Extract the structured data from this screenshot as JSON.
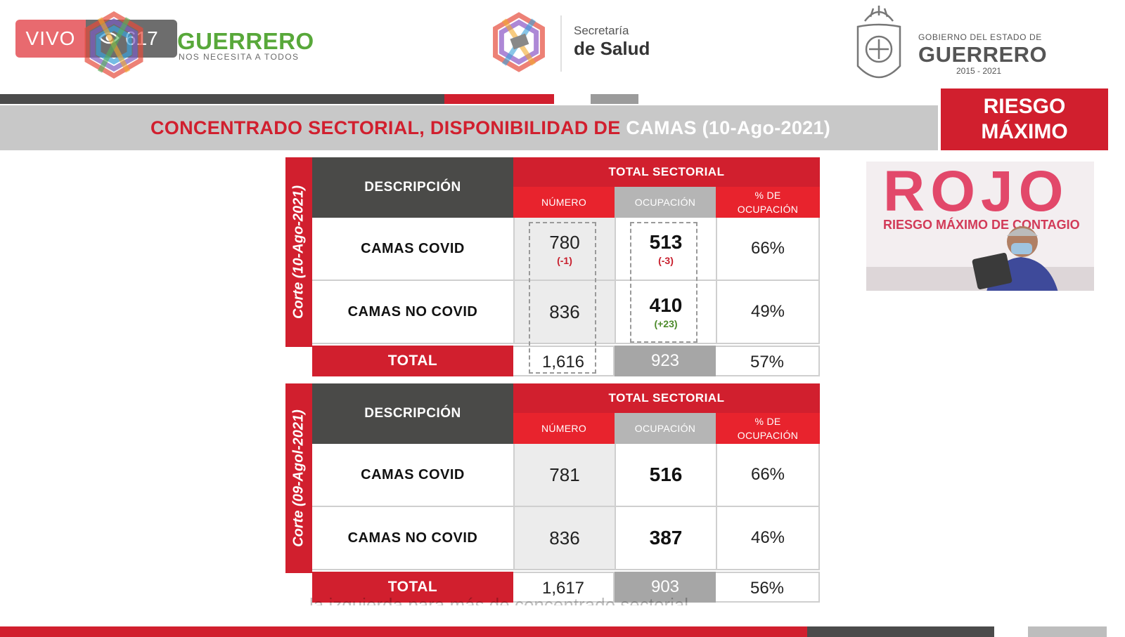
{
  "live": {
    "label": "VIVO",
    "viewers": "617"
  },
  "header": {
    "guerrero_logo": {
      "title": "GUERRERO",
      "tagline": "NOS NECESITA A TODOS"
    },
    "salud_logo": {
      "line1": "Secretaría",
      "line2": "de Salud"
    },
    "gobierno_logo": {
      "line1": "GOBIERNO DEL ESTADO DE",
      "line2": "GUERRERO",
      "years": "2015 - 2021"
    }
  },
  "title": {
    "red_part": "CONCENTRADO SECTORIAL, DISPONIBILIDAD DE",
    "white_part": "CAMAS (10-Ago-2021)"
  },
  "risk_badge": {
    "line1": "RIESGO",
    "line2": "MÁXIMO"
  },
  "tables": [
    {
      "side_label": "Corte (10-Ago-2021)",
      "desc_header": "DESCRIPCIÓN",
      "group_header": "TOTAL SECTORIAL",
      "sub_headers": [
        "NÚMERO",
        "OCUPACIÓN",
        "% DE OCUPACIÓN"
      ],
      "rows": [
        {
          "label": "CAMAS COVID",
          "numero": "780",
          "numero_delta": "(-1)",
          "ocupacion": "513",
          "ocupacion_delta": "(-3)",
          "pct": "66%"
        },
        {
          "label": "CAMAS NO COVID",
          "numero": "836",
          "numero_delta": "",
          "ocupacion": "410",
          "ocupacion_delta": "(+23)",
          "pct": "49%"
        }
      ],
      "total": {
        "label": "TOTAL",
        "numero": "1,616",
        "ocupacion": "923",
        "pct": "57%"
      }
    },
    {
      "side_label": "Corte (09-Agol-2021)",
      "desc_header": "DESCRIPCIÓN",
      "group_header": "TOTAL SECTORIAL",
      "sub_headers": [
        "NÚMERO",
        "OCUPACIÓN",
        "% DE OCUPACIÓN"
      ],
      "rows": [
        {
          "label": "CAMAS COVID",
          "numero": "781",
          "numero_delta": "",
          "ocupacion": "516",
          "ocupacion_delta": "",
          "pct": "66%"
        },
        {
          "label": "CAMAS NO COVID",
          "numero": "836",
          "numero_delta": "",
          "ocupacion": "387",
          "ocupacion_delta": "",
          "pct": "46%"
        }
      ],
      "total": {
        "label": "TOTAL",
        "numero": "1,617",
        "ocupacion": "903",
        "pct": "56%"
      }
    }
  ],
  "video": {
    "banner": "ROJO",
    "strip": "RIESGO MÁXIMO DE CONTAGIO"
  },
  "caption": "la izquierda para más de concentrado sectorial",
  "colors": {
    "red": "#d11f2e",
    "dark": "#4a4a48",
    "gray": "#b5b5b5"
  }
}
